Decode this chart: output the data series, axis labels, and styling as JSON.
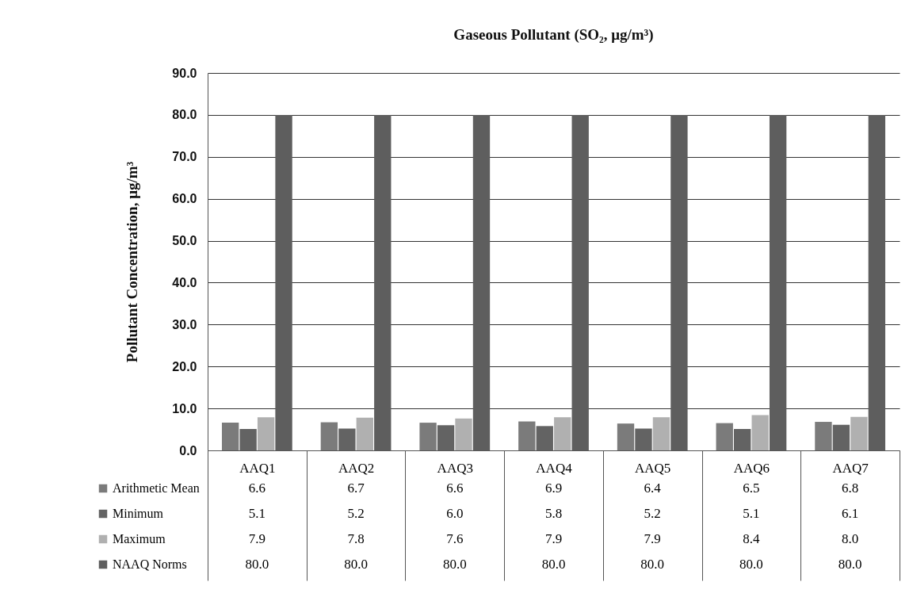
{
  "chart_data": {
    "type": "bar",
    "title": "Gaseous Pollutant (SO₂, μg/m³)",
    "ylabel": "Pollutant Concentration, μg/m³",
    "categories": [
      "AAQ1",
      "AAQ2",
      "AAQ3",
      "AAQ4",
      "AAQ5",
      "AAQ6",
      "AAQ7"
    ],
    "series": [
      {
        "name": "Arithmetic Mean",
        "color": "#7b7b7b",
        "values": [
          6.6,
          6.7,
          6.6,
          6.9,
          6.4,
          6.5,
          6.8
        ],
        "value_labels": [
          "6.6",
          "6.7",
          "6.6",
          "6.9",
          "6.4",
          "6.5",
          "6.8"
        ]
      },
      {
        "name": "Minimum",
        "color": "#636363",
        "values": [
          5.1,
          5.2,
          6.0,
          5.8,
          5.2,
          5.1,
          6.1
        ],
        "value_labels": [
          "5.1",
          "5.2",
          "6.0",
          "5.8",
          "5.2",
          "5.1",
          "6.1"
        ]
      },
      {
        "name": "Maximum",
        "color": "#b0b0b0",
        "values": [
          7.9,
          7.8,
          7.6,
          7.9,
          7.9,
          8.4,
          8.0
        ],
        "value_labels": [
          "7.9",
          "7.8",
          "7.6",
          "7.9",
          "7.9",
          "8.4",
          "8.0"
        ]
      },
      {
        "name": "NAAQ Norms",
        "color": "#5e5e5e",
        "values": [
          80.0,
          80.0,
          80.0,
          80.0,
          80.0,
          80.0,
          80.0
        ],
        "value_labels": [
          "80.0",
          "80.0",
          "80.0",
          "80.0",
          "80.0",
          "80.0",
          "80.0"
        ]
      }
    ],
    "ylim": [
      0,
      90
    ],
    "yticks": [
      {
        "value": 0,
        "label": "0.0"
      },
      {
        "value": 10,
        "label": "10.0"
      },
      {
        "value": 20,
        "label": "20.0"
      },
      {
        "value": 30,
        "label": "30.0"
      },
      {
        "value": 40,
        "label": "40.0"
      },
      {
        "value": 50,
        "label": "50.0"
      },
      {
        "value": 60,
        "label": "60.0"
      },
      {
        "value": 70,
        "label": "70.0"
      },
      {
        "value": 80,
        "label": "80.0"
      },
      {
        "value": 90,
        "label": "90.0"
      }
    ],
    "grid": "y",
    "legend": "bottom left"
  }
}
